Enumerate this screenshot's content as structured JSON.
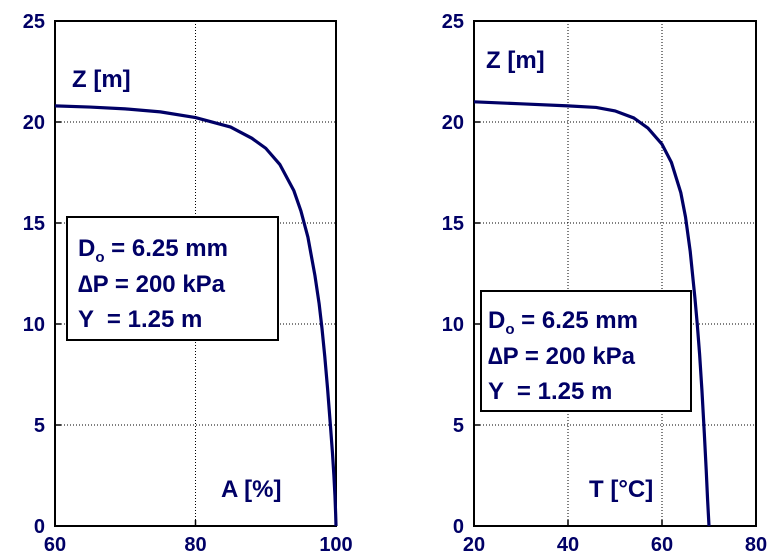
{
  "colors": {
    "curve": "#000066",
    "text": "#000066",
    "frame": "#000000",
    "grid": "#000000"
  },
  "chart_data": [
    {
      "type": "line",
      "title": "",
      "ylabel": "Z [m]",
      "xlabel": "A [%]",
      "xlim": [
        60,
        100
      ],
      "ylim": [
        0,
        25
      ],
      "x_ticks": [
        "60",
        "80",
        "100"
      ],
      "y_ticks": [
        "0",
        "5",
        "10",
        "15",
        "20",
        "25"
      ],
      "grid": true,
      "annotation": {
        "line1_main": "D",
        "line1_sub": "o",
        "line1_rest": " = 6.25 mm",
        "line2": "∆P = 200 kPa",
        "line3": "Y  = 1.25 m"
      },
      "series": [
        {
          "x": [
            60,
            65,
            70,
            75,
            80,
            85,
            88,
            90,
            92,
            94,
            95,
            96,
            97,
            97.6,
            98,
            98.4,
            98.8,
            99.2,
            99.5,
            99.7,
            99.85,
            99.95,
            100
          ],
          "y": [
            20.8,
            20.74,
            20.65,
            20.5,
            20.22,
            19.75,
            19.2,
            18.7,
            17.9,
            16.6,
            15.6,
            14.3,
            12.4,
            11.0,
            9.8,
            8.4,
            6.8,
            5.0,
            3.6,
            2.5,
            1.5,
            0.6,
            0
          ]
        }
      ]
    },
    {
      "type": "line",
      "title": "",
      "ylabel": "Z [m]",
      "xlabel": "T [°C]",
      "xlim": [
        20,
        80
      ],
      "ylim": [
        0,
        25
      ],
      "x_ticks": [
        "20",
        "40",
        "60",
        "80"
      ],
      "y_ticks": [
        "0",
        "5",
        "10",
        "15",
        "20",
        "25"
      ],
      "grid": true,
      "annotation": {
        "line1_main": "D",
        "line1_sub": "o",
        "line1_rest": " = 6.25 mm",
        "line2": "∆P = 200 kPa",
        "line3": "Y  = 1.25 m"
      },
      "series": [
        {
          "x": [
            20,
            30,
            40,
            46,
            50,
            54,
            57,
            60,
            62,
            64,
            65,
            66,
            67,
            67.5,
            68,
            68.5,
            69,
            69.4,
            69.7,
            70
          ],
          "y": [
            21.0,
            20.9,
            20.8,
            20.72,
            20.55,
            20.2,
            19.7,
            18.9,
            18.0,
            16.5,
            15.3,
            13.6,
            11.3,
            10.0,
            8.5,
            6.7,
            4.6,
            2.8,
            1.3,
            0
          ]
        }
      ]
    }
  ]
}
